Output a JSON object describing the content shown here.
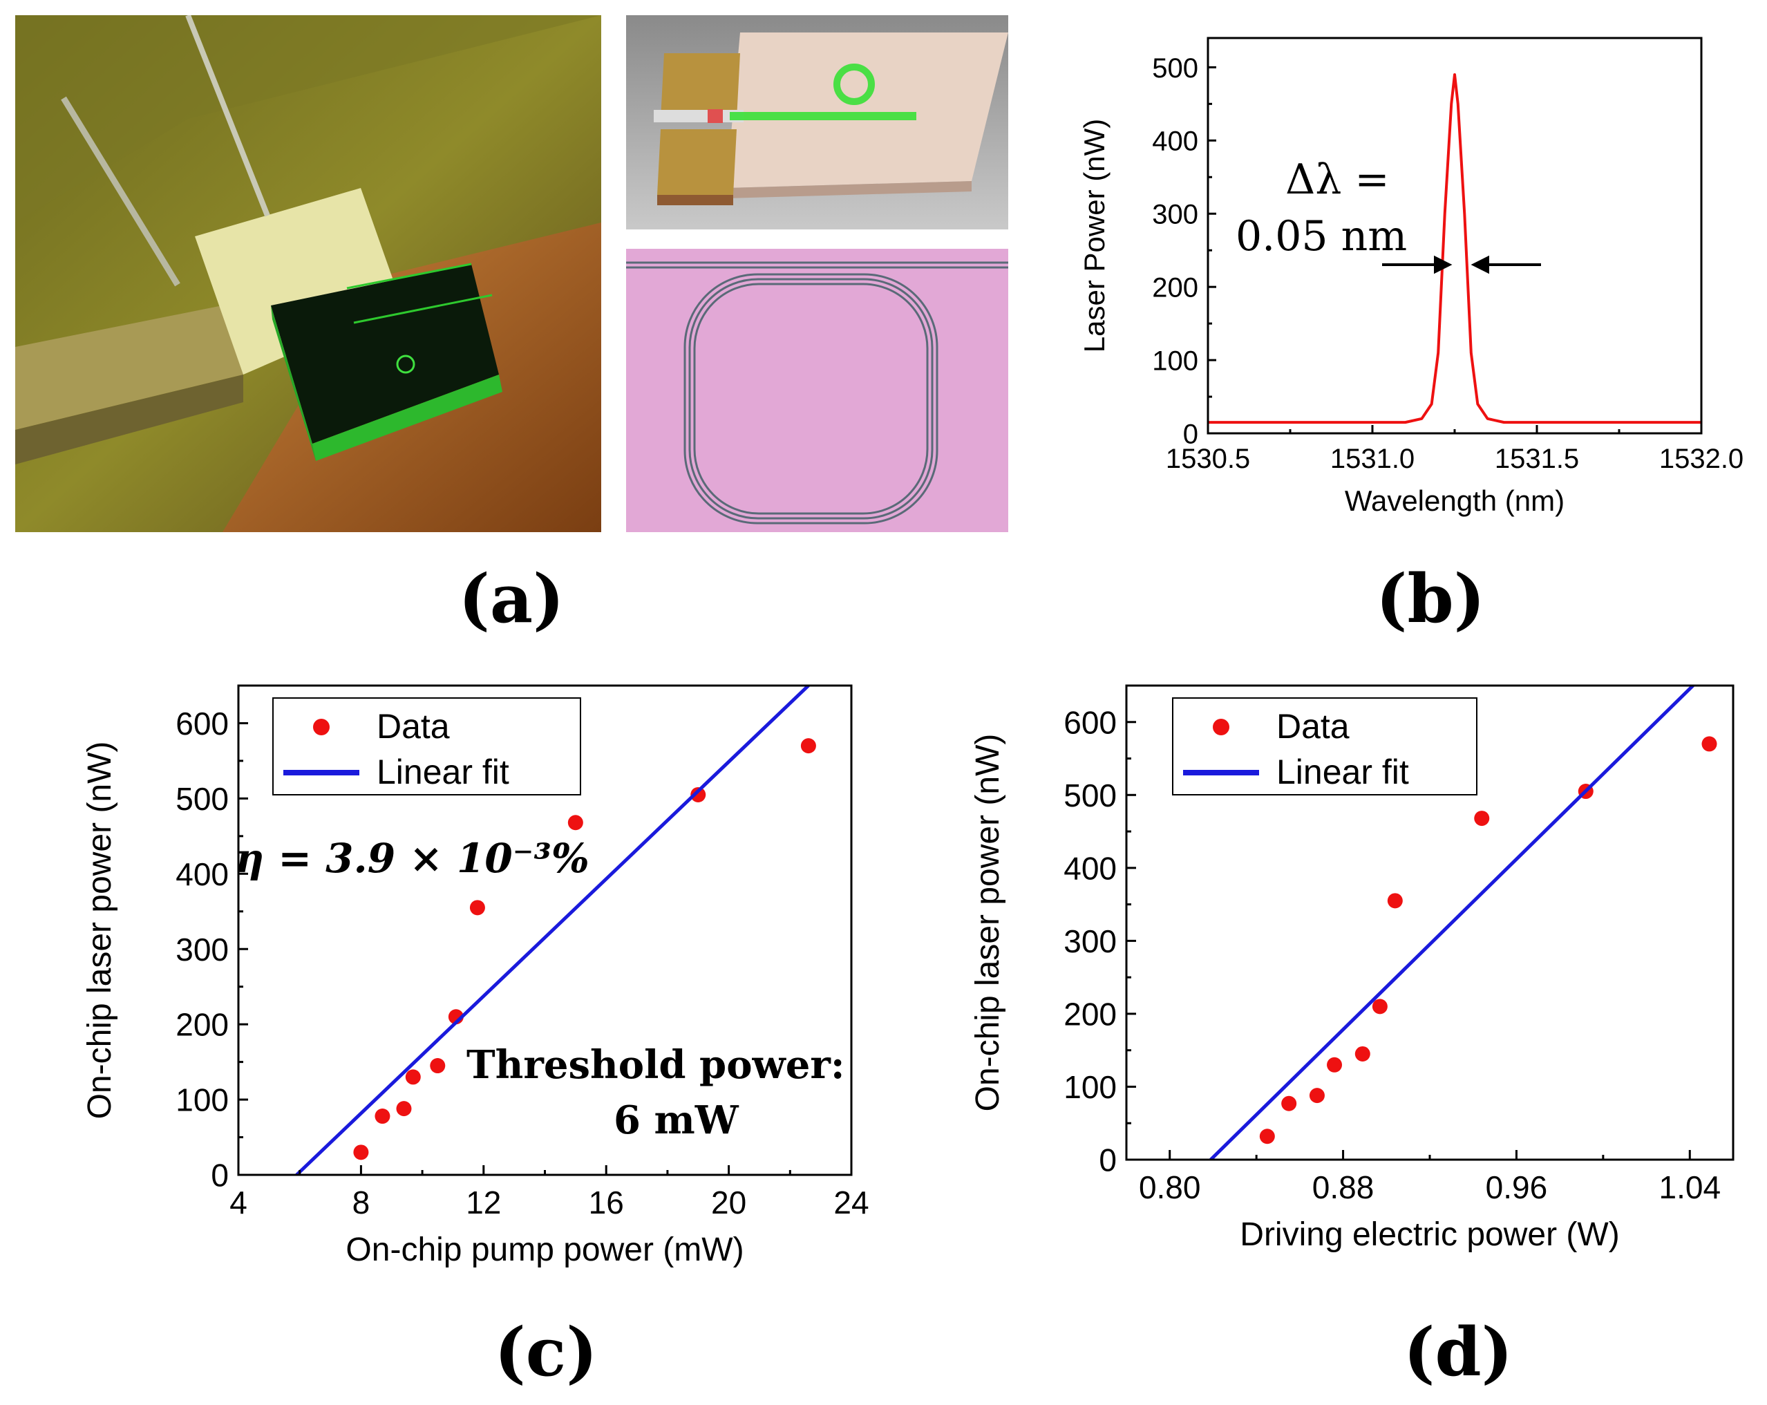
{
  "panel_labels": {
    "a": "(a)",
    "b": "(b)",
    "c": "(c)",
    "d": "(d)"
  },
  "annotations": {
    "linewidth_line1": "Δλ =",
    "linewidth_line2": "0.05 nm",
    "efficiency": "η = 3.9 × 10⁻³%",
    "threshold_line1": "Threshold power:",
    "threshold_line2": "6 mW"
  },
  "colors": {
    "data": "#ee1111",
    "fit": "#1a1adc",
    "spectrum": "#ee1111"
  },
  "chart_data": [
    {
      "id": "b",
      "type": "line",
      "xlabel": "Wavelength (nm)",
      "ylabel": "Laser Power (nW)",
      "xlim": [
        1530.5,
        1532.0
      ],
      "ylim": [
        0,
        540
      ],
      "xticks": [
        1530.5,
        1531.0,
        1531.5,
        1532.0
      ],
      "xtick_labels": [
        "1530.5",
        "1531.0",
        "1531.5",
        "1532.0"
      ],
      "yticks": [
        0,
        100,
        200,
        300,
        400,
        500
      ],
      "ytick_labels": [
        "0",
        "100",
        "200",
        "300",
        "400",
        "500"
      ],
      "series": [
        {
          "x": [
            1530.5,
            1531.0,
            1531.1,
            1531.15,
            1531.18,
            1531.2,
            1531.22,
            1531.24,
            1531.25,
            1531.26,
            1531.28,
            1531.3,
            1531.32,
            1531.35,
            1531.4,
            1531.5,
            1532.0
          ],
          "y": [
            15,
            15,
            15,
            20,
            40,
            110,
            300,
            450,
            490,
            450,
            300,
            110,
            40,
            20,
            15,
            15,
            15
          ]
        }
      ],
      "legend": "none",
      "grid": false
    },
    {
      "id": "c",
      "type": "scatter",
      "xlabel": "On-chip pump power (mW)",
      "ylabel": "On-chip laser power (nW)",
      "xlim": [
        4,
        24
      ],
      "ylim": [
        0,
        650
      ],
      "xticks": [
        4,
        8,
        12,
        16,
        20,
        24
      ],
      "xtick_labels": [
        "4",
        "8",
        "12",
        "16",
        "20",
        "24"
      ],
      "yticks": [
        0,
        100,
        200,
        300,
        400,
        500,
        600
      ],
      "ytick_labels": [
        "0",
        "100",
        "200",
        "300",
        "400",
        "500",
        "600"
      ],
      "legend": "top-left",
      "series": [
        {
          "name": "Data",
          "kind": "points",
          "x": [
            8.0,
            8.7,
            9.4,
            9.7,
            10.5,
            11.1,
            11.8,
            15.0,
            19.0,
            22.6
          ],
          "y": [
            30,
            78,
            88,
            130,
            145,
            210,
            355,
            468,
            505,
            570
          ]
        },
        {
          "name": "Linear fit",
          "kind": "line",
          "x": [
            5.9,
            22.6
          ],
          "y": [
            0,
            650
          ]
        }
      ]
    },
    {
      "id": "d",
      "type": "scatter",
      "xlabel": "Driving electric power (W)",
      "ylabel": "On-chip laser power (nW)",
      "xlim": [
        0.78,
        1.06
      ],
      "ylim": [
        0,
        650
      ],
      "xticks": [
        0.8,
        0.88,
        0.96,
        1.04
      ],
      "xtick_labels": [
        "0.80",
        "0.88",
        "0.96",
        "1.04"
      ],
      "yticks": [
        0,
        100,
        200,
        300,
        400,
        500,
        600
      ],
      "ytick_labels": [
        "0",
        "100",
        "200",
        "300",
        "400",
        "500",
        "600"
      ],
      "legend": "top-left",
      "series": [
        {
          "name": "Data",
          "kind": "points",
          "x": [
            0.845,
            0.855,
            0.868,
            0.876,
            0.889,
            0.897,
            0.904,
            0.944,
            0.992,
            1.049
          ],
          "y": [
            32,
            77,
            88,
            130,
            145,
            210,
            355,
            468,
            505,
            570
          ]
        },
        {
          "name": "Linear fit",
          "kind": "line",
          "x": [
            0.8189,
            1.0415
          ],
          "y": [
            0,
            650
          ]
        }
      ]
    }
  ]
}
